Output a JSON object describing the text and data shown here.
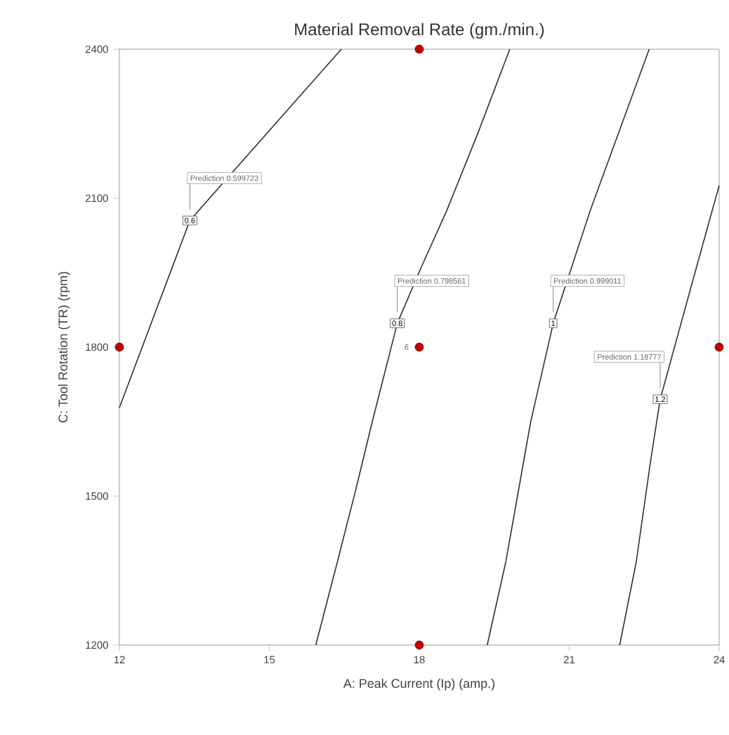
{
  "chart_data": {
    "type": "line",
    "title": "Material Removal Rate (gm./min.)",
    "xlabel": "A: Peak Current (Ip) (amp.)",
    "ylabel": "C: Tool Rotation (TR) (rpm)",
    "xlim": [
      12,
      24
    ],
    "ylim": [
      1200,
      2400
    ],
    "xticks": [
      12,
      15,
      18,
      21,
      24
    ],
    "yticks": [
      1200,
      1500,
      1800,
      2100,
      2400
    ],
    "series": [
      {
        "name": "0.6",
        "color": "#1f3a2a",
        "x": [
          12,
          13.41,
          16.44
        ],
        "values": [
          1678,
          2055,
          2400
        ]
      },
      {
        "name": "0.8",
        "color": "#1f3a2a",
        "x": [
          15.93,
          16.36,
          16.72,
          17.06,
          17.56,
          18.04,
          18.55,
          19.17,
          19.81
        ],
        "values": [
          1200,
          1367,
          1509,
          1650,
          1848,
          1961,
          2075,
          2230,
          2400
        ]
      },
      {
        "name": "1",
        "color": "#1f3a2a",
        "x": [
          19.36,
          19.73,
          20.23,
          20.68,
          21.42,
          22.6
        ],
        "values": [
          1200,
          1367,
          1650,
          1848,
          2075,
          2400
        ]
      },
      {
        "name": "1.2",
        "color": "#1f3a2a",
        "x": [
          22.01,
          22.34,
          22.62,
          22.82,
          23.47,
          23.86,
          24
        ],
        "values": [
          1200,
          1367,
          1565,
          1695,
          1933,
          2075,
          2125
        ]
      },
      {
        "type": "scatter",
        "color": "#c00000",
        "x": [
          12,
          18,
          18,
          18,
          24
        ],
        "values": [
          1800,
          2400,
          1800,
          1200,
          1800
        ]
      }
    ],
    "annotations": [
      "Prediction 0.599723",
      "Prediction 0.798561",
      "Prediction 0.999011",
      "Prediction 1.18777",
      "6"
    ]
  }
}
